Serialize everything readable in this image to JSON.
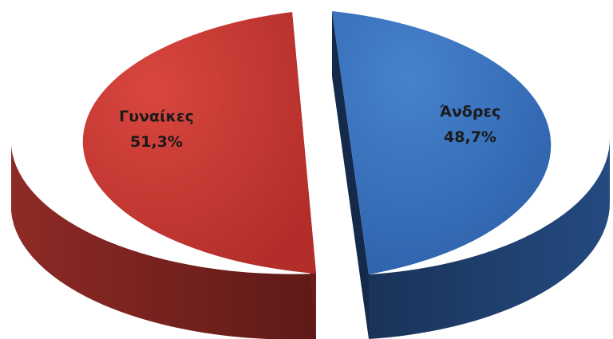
{
  "chart_data": {
    "type": "pie",
    "style": "3d-exploded",
    "title": "",
    "slices": [
      {
        "label": "Γυναίκες",
        "value": 51.3,
        "value_label": "51,3%",
        "color": "#c83a35",
        "side_color": "#7a2220"
      },
      {
        "label": "Άνδρες",
        "value": 48.7,
        "value_label": "48,7%",
        "color": "#3a72bd",
        "side_color": "#1d3a68"
      }
    ]
  }
}
